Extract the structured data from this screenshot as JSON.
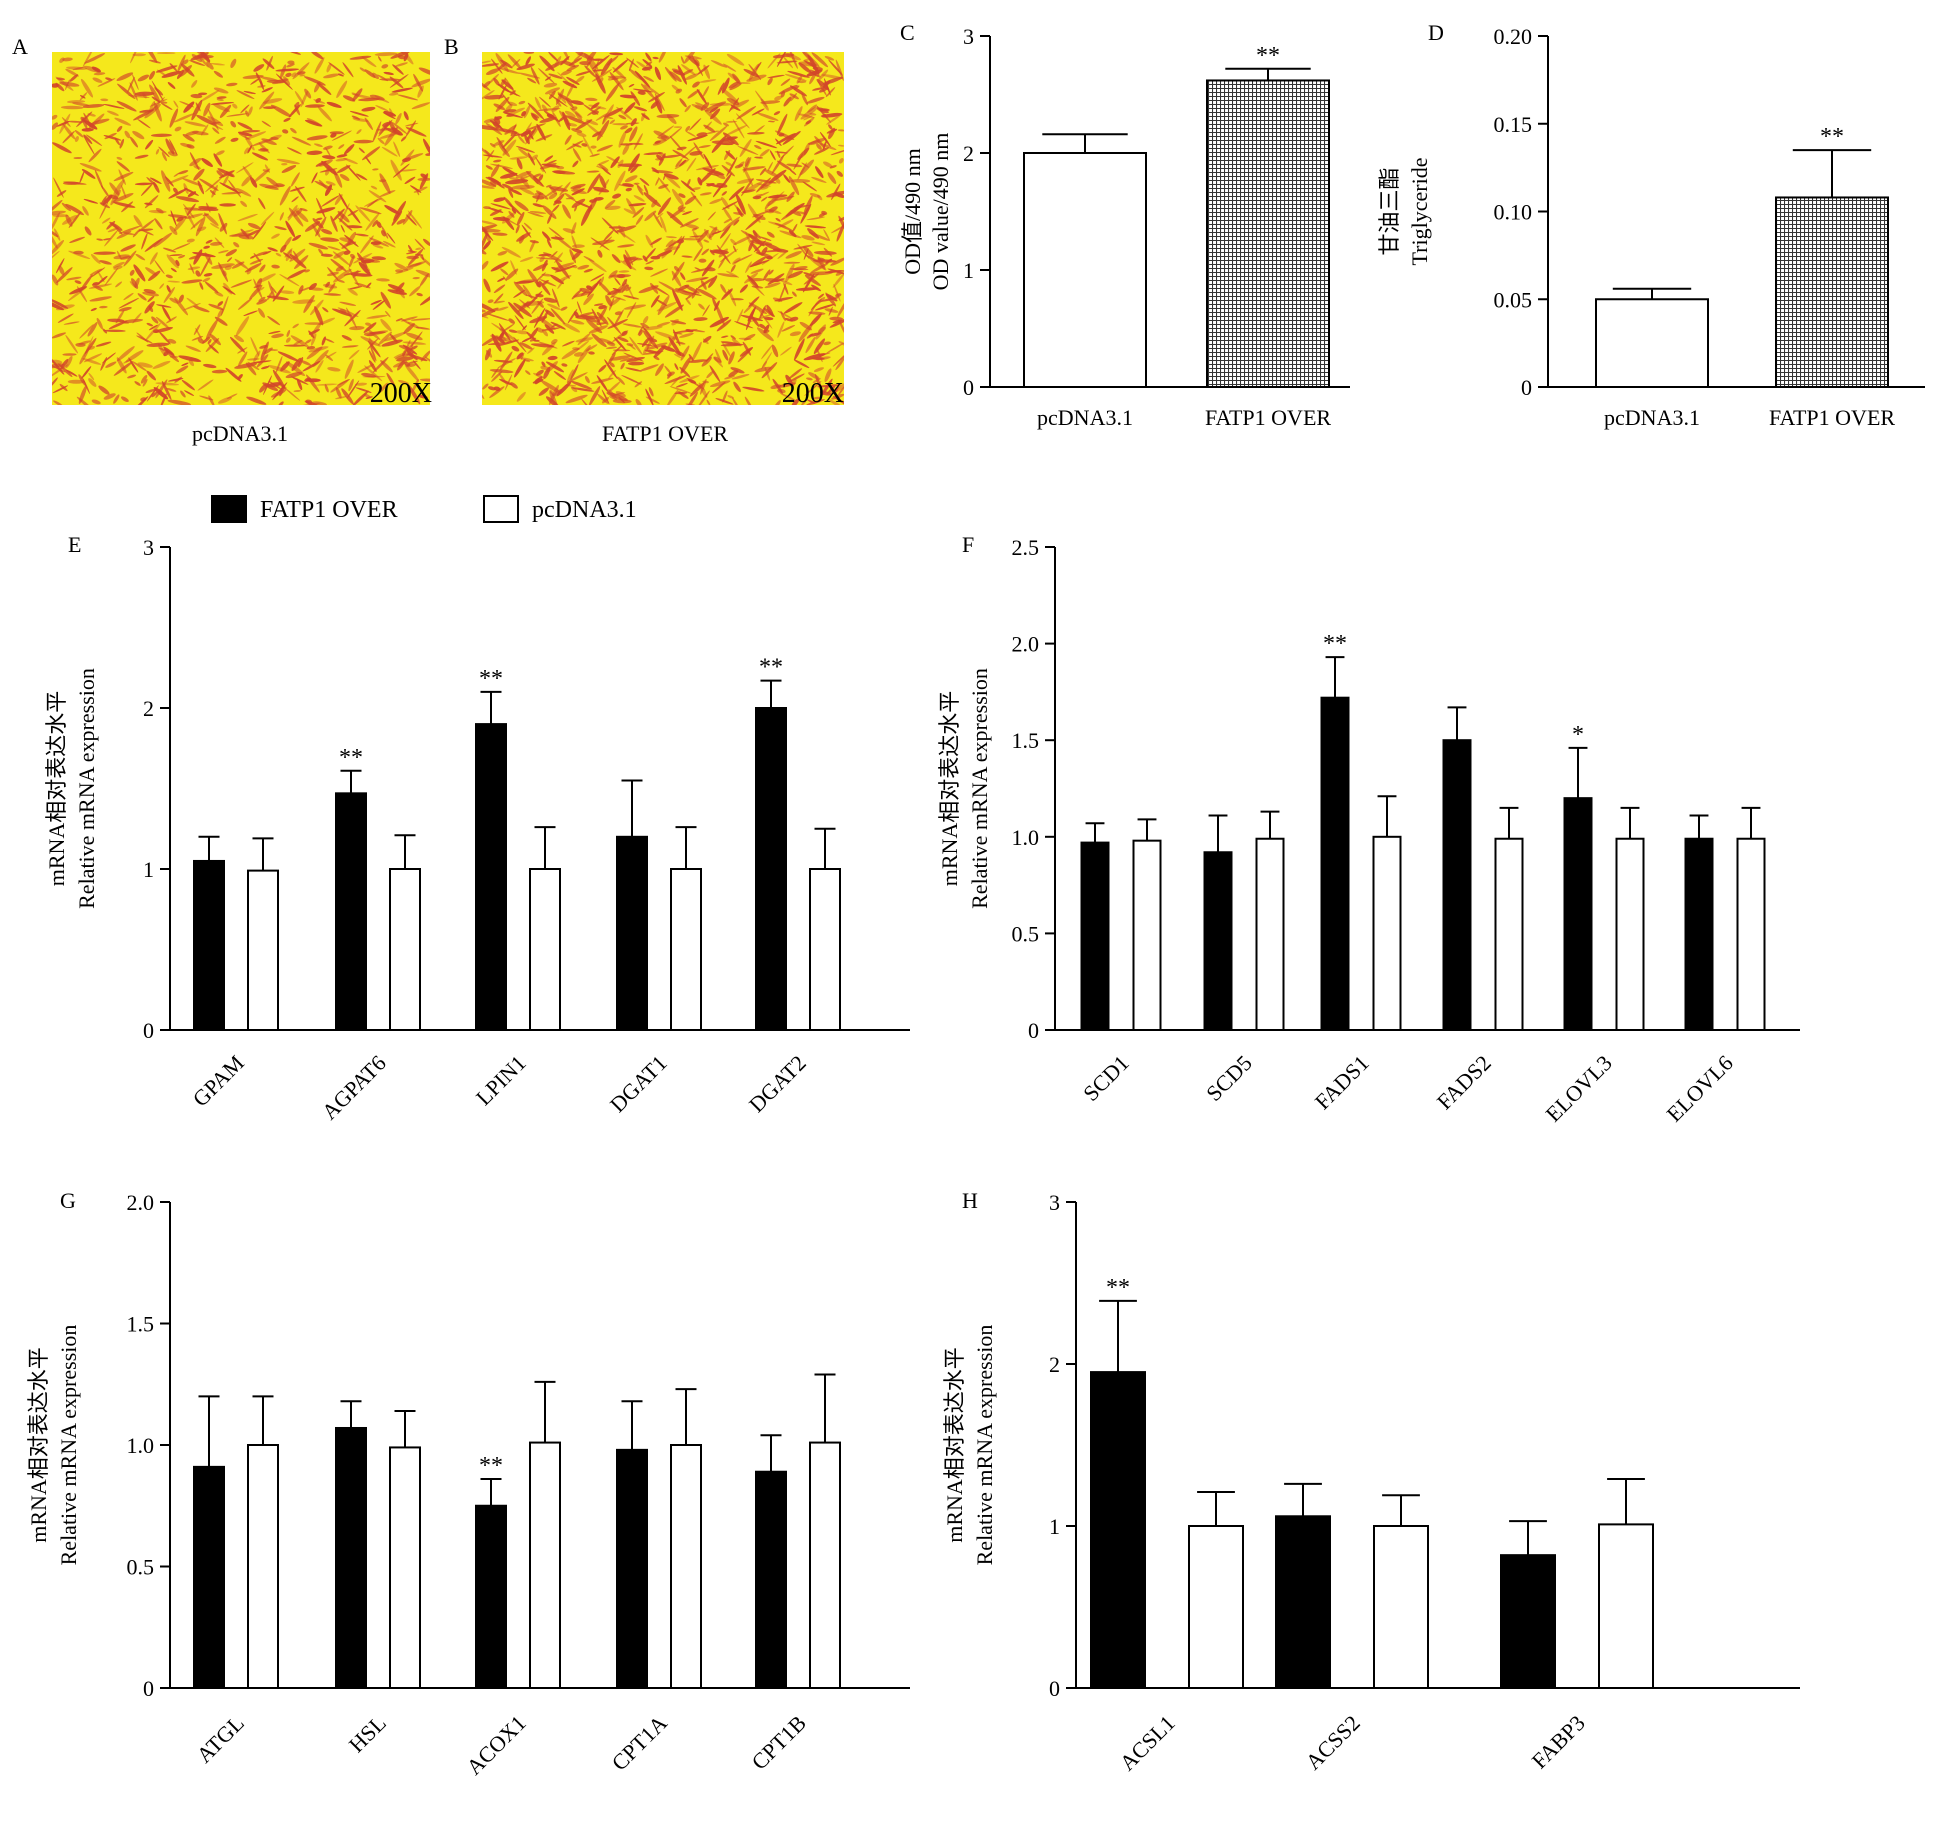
{
  "panels": {
    "A": {
      "letter": "A",
      "magnification": "200X",
      "caption": "pcDNA3.1"
    },
    "B": {
      "letter": "B",
      "magnification": "200X",
      "caption": "FATP1 OVER"
    }
  },
  "legend": {
    "items": [
      {
        "label": "FATP1 OVER",
        "fill": "#000000"
      },
      {
        "label": "pcDNA3.1",
        "fill": "#ffffff"
      }
    ]
  },
  "colors": {
    "micro_background": "#f5e81c",
    "micro_stain": "#d2452a",
    "fatp1_bar": "#000000",
    "control_bar": "#ffffff",
    "crosshatch": "#333333"
  },
  "chart_data": [
    {
      "panel": "C",
      "type": "bar",
      "categories": [
        "pcDNA3.1",
        "FATP1 OVER"
      ],
      "values": [
        2.0,
        2.62
      ],
      "errors": [
        0.16,
        0.1
      ],
      "fills": [
        "white",
        "crosshatch"
      ],
      "significance": [
        "",
        "**"
      ],
      "ylabel_lines": [
        "OD值/490 nm",
        "OD value/490 nm"
      ],
      "ylim": [
        0,
        3
      ],
      "yticks": [
        "0",
        "1",
        "2",
        "3"
      ],
      "legend": "none"
    },
    {
      "panel": "D",
      "type": "bar",
      "categories": [
        "pcDNA3.1",
        "FATP1 OVER"
      ],
      "values": [
        0.05,
        0.108
      ],
      "errors": [
        0.006,
        0.027
      ],
      "fills": [
        "white",
        "crosshatch"
      ],
      "significance": [
        "",
        "**"
      ],
      "ylabel_lines": [
        "甘油三酯",
        "Triglyceride"
      ],
      "ylim": [
        0,
        0.2
      ],
      "yticks": [
        "0",
        "0.05",
        "0.10",
        "0.15",
        "0.20"
      ],
      "legend": "none"
    },
    {
      "panel": "E",
      "type": "bar",
      "categories": [
        "GPAM",
        "AGPAT6",
        "LPIN1",
        "DGAT1",
        "DGAT2"
      ],
      "series": [
        {
          "name": "FATP1 OVER",
          "values": [
            1.05,
            1.47,
            1.9,
            1.2,
            2.0
          ],
          "errors": [
            0.15,
            0.14,
            0.2,
            0.35,
            0.17
          ],
          "significance": [
            "",
            "**",
            "**",
            "",
            "**"
          ]
        },
        {
          "name": "pcDNA3.1",
          "values": [
            0.99,
            1.0,
            1.0,
            1.0,
            1.0
          ],
          "errors": [
            0.2,
            0.21,
            0.26,
            0.26,
            0.25
          ],
          "significance": [
            "",
            "",
            "",
            "",
            ""
          ]
        }
      ],
      "ylabel_lines": [
        "mRNA相对表达水平",
        "Relative mRNA expression"
      ],
      "ylim": [
        0,
        3
      ],
      "yticks": [
        "0",
        "1",
        "2",
        "3"
      ],
      "legend": "top"
    },
    {
      "panel": "F",
      "type": "bar",
      "categories": [
        "SCD1",
        "SCD5",
        "FADS1",
        "FADS2",
        "ELOVL3",
        "ELOVL6"
      ],
      "series": [
        {
          "name": "FATP1 OVER",
          "values": [
            0.97,
            0.92,
            1.72,
            1.5,
            1.2,
            0.99
          ],
          "errors": [
            0.1,
            0.19,
            0.21,
            0.17,
            0.26,
            0.12
          ],
          "significance": [
            "",
            "",
            "**",
            "",
            "*",
            ""
          ]
        },
        {
          "name": "pcDNA3.1",
          "values": [
            0.98,
            0.99,
            1.0,
            0.99,
            0.99,
            0.99
          ],
          "errors": [
            0.11,
            0.14,
            0.21,
            0.16,
            0.16,
            0.16
          ],
          "significance": [
            "",
            "",
            "",
            "",
            "",
            ""
          ]
        }
      ],
      "ylabel_lines": [
        "mRNA相对表达水平",
        "Relative mRNA expression"
      ],
      "ylim": [
        0,
        2.5
      ],
      "yticks": [
        "0",
        "0.5",
        "1.0",
        "1.5",
        "2.0",
        "2.5"
      ],
      "legend": "top"
    },
    {
      "panel": "G",
      "type": "bar",
      "categories": [
        "ATGL",
        "HSL",
        "ACOX1",
        "CPT1A",
        "CPT1B"
      ],
      "series": [
        {
          "name": "FATP1 OVER",
          "values": [
            0.91,
            1.07,
            0.75,
            0.98,
            0.89
          ],
          "errors": [
            0.29,
            0.11,
            0.11,
            0.2,
            0.15
          ],
          "significance": [
            "",
            "",
            "**",
            "",
            ""
          ]
        },
        {
          "name": "pcDNA3.1",
          "values": [
            1.0,
            0.99,
            1.01,
            1.0,
            1.01
          ],
          "errors": [
            0.2,
            0.15,
            0.25,
            0.23,
            0.28
          ],
          "significance": [
            "",
            "",
            "",
            "",
            ""
          ]
        }
      ],
      "ylabel_lines": [
        "mRNA相对表达水平",
        "Relative mRNA expression"
      ],
      "ylim": [
        0,
        2.0
      ],
      "yticks": [
        "0",
        "0.5",
        "1.0",
        "1.5",
        "2.0"
      ],
      "legend": "top"
    },
    {
      "panel": "H",
      "type": "bar",
      "categories": [
        "ACSL1",
        "ACSS2",
        "FABP3"
      ],
      "series": [
        {
          "name": "FATP1 OVER",
          "values": [
            1.95,
            1.06,
            0.82
          ],
          "errors": [
            0.44,
            0.2,
            0.21
          ],
          "significance": [
            "**",
            "",
            ""
          ]
        },
        {
          "name": "pcDNA3.1",
          "values": [
            1.0,
            1.0,
            1.01
          ],
          "errors": [
            0.21,
            0.19,
            0.28
          ],
          "significance": [
            "",
            "",
            ""
          ]
        }
      ],
      "ylabel_lines": [
        "mRNA相对表达水平",
        "Relative mRNA expression"
      ],
      "ylim": [
        0,
        3
      ],
      "yticks": [
        "0",
        "1",
        "2",
        "3"
      ],
      "legend": "top"
    }
  ]
}
